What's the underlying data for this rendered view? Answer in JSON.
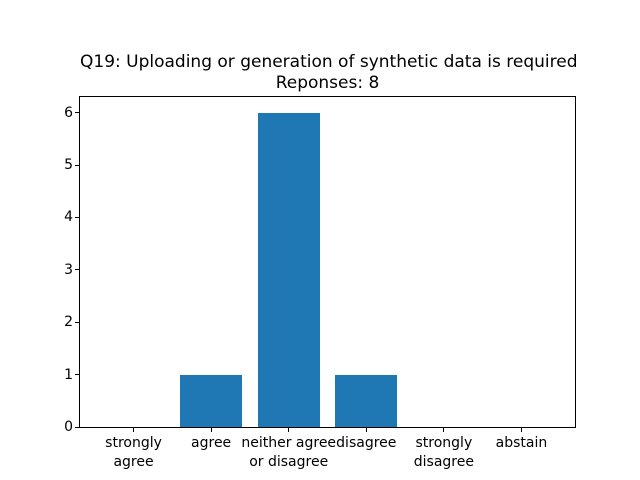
{
  "figure": {
    "background_color": "#ffffff",
    "spine_color": "#000000",
    "text_color": "#000000"
  },
  "chart_data": {
    "type": "bar",
    "title": "Q19: Uploading or generation of synthetic data is required",
    "subtitle": "Reponses: 8",
    "categories": [
      "strongly\nagree",
      "agree",
      "neither agree\nor disagree",
      "disagree",
      "strongly\ndisagree",
      "abstain"
    ],
    "values": [
      0,
      1,
      6,
      1,
      0,
      0
    ],
    "yticks": [
      0,
      1,
      2,
      3,
      4,
      5,
      6
    ],
    "ylim": [
      0,
      6.3
    ],
    "xlim": [
      -0.69,
      5.69
    ],
    "bar_width_units": 0.8,
    "bar_color": "#1f77b4",
    "xlabel": "",
    "ylabel": "",
    "grid": false,
    "legend": null
  }
}
